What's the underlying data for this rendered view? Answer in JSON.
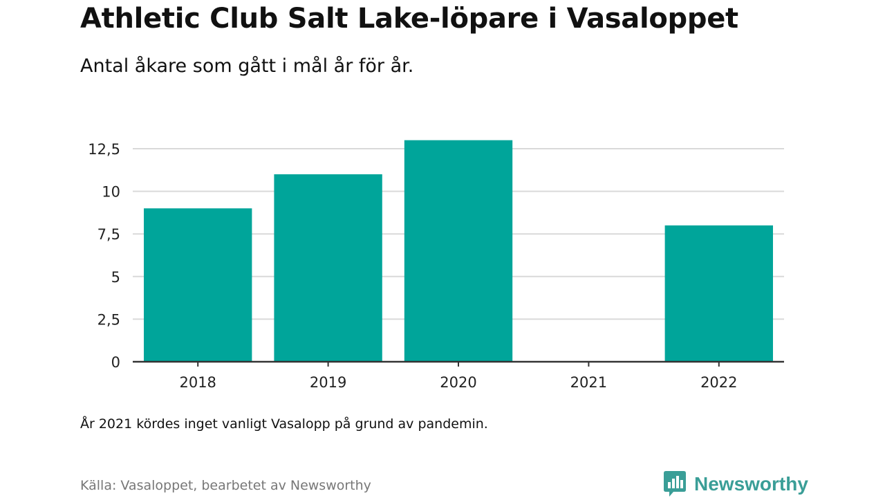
{
  "header": {
    "title": "Athletic Club Salt Lake-löpare i Vasaloppet",
    "subtitle": "Antal åkare som gått i mål år för år."
  },
  "footer": {
    "note": "År 2021 kördes inget vanligt Vasalopp på grund av pandemin.",
    "source": "Källa: Vasaloppet, bearbetet av Newsworthy",
    "logo_text": "Newsworthy",
    "logo_icon": "bar-chart-speech-bubble-icon"
  },
  "colors": {
    "bar": "#00A59A",
    "logo": "#3A9E97",
    "grid": "#D9D9D9",
    "axis": "#333333"
  },
  "chart_data": {
    "type": "bar",
    "title": "Athletic Club Salt Lake-löpare i Vasaloppet",
    "subtitle": "Antal åkare som gått i mål år för år.",
    "xlabel": "",
    "ylabel": "",
    "categories": [
      "2018",
      "2019",
      "2020",
      "2021",
      "2022"
    ],
    "values": [
      9,
      11,
      13,
      0,
      8
    ],
    "ylim": [
      0,
      12.5
    ],
    "yticks": [
      0,
      2.5,
      5,
      7.5,
      10,
      12.5
    ],
    "ytick_labels": [
      "0",
      "2,5",
      "5",
      "7,5",
      "10",
      "12,5"
    ],
    "grid": true,
    "legend": "none"
  }
}
